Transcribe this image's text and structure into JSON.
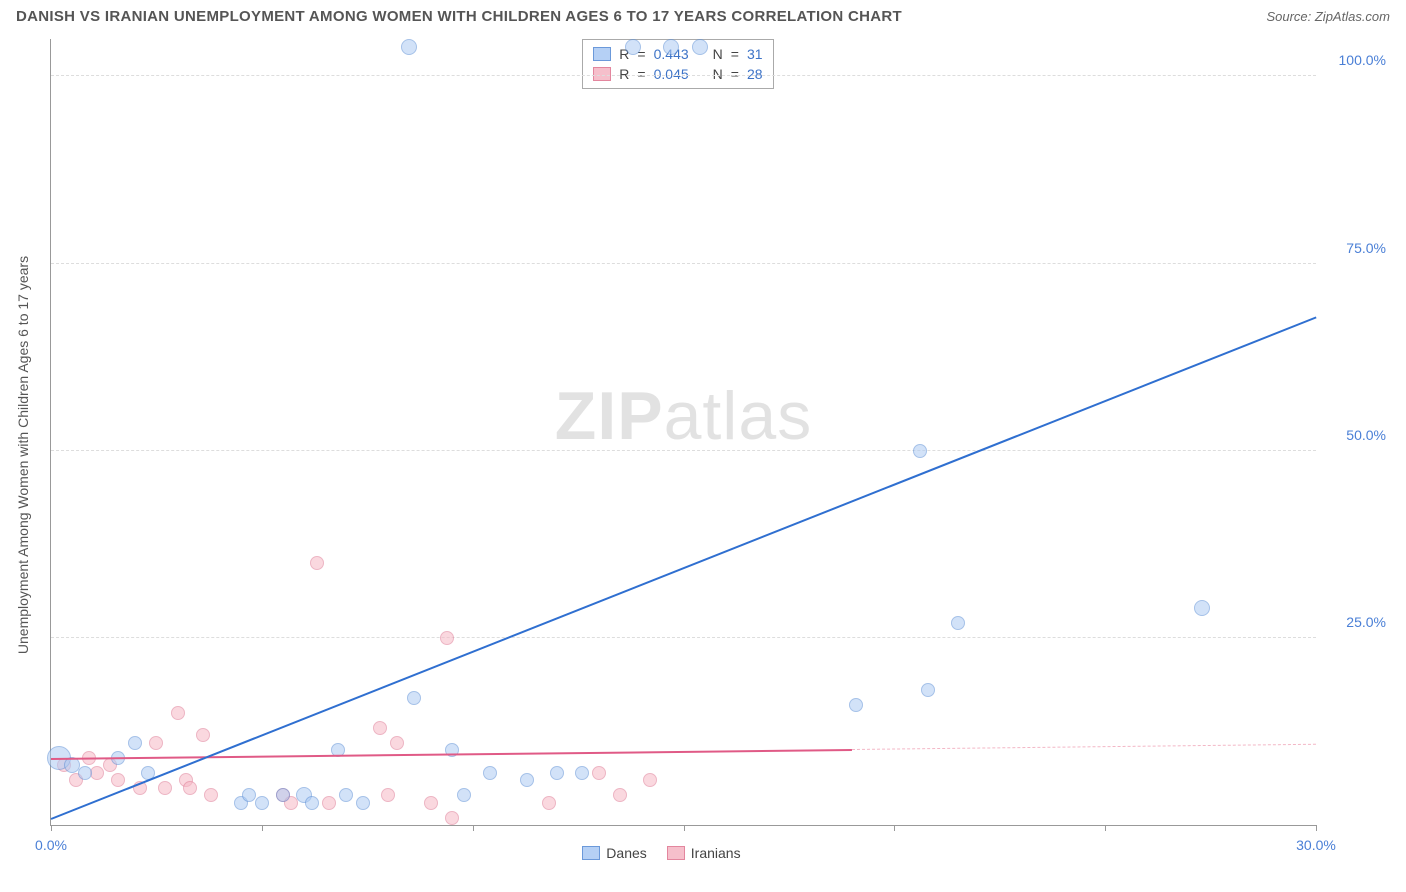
{
  "header": {
    "title": "DANISH VS IRANIAN UNEMPLOYMENT AMONG WOMEN WITH CHILDREN AGES 6 TO 17 YEARS CORRELATION CHART",
    "source_prefix": "Source: ",
    "source": "ZipAtlas.com"
  },
  "watermark": {
    "zip": "ZIP",
    "atlas": "atlas"
  },
  "axes": {
    "ylabel": "Unemployment Among Women with Children Ages 6 to 17 years",
    "xlim": [
      0,
      30
    ],
    "ylim": [
      0,
      105
    ],
    "yticks": [
      25,
      50,
      75,
      100
    ],
    "ytick_labels": [
      "25.0%",
      "50.0%",
      "75.0%",
      "100.0%"
    ],
    "ytick_color": "#4a7fd6",
    "xtick_positions": [
      0,
      5,
      10,
      15,
      20,
      25,
      30
    ],
    "xtick_visible_labels": {
      "0": "0.0%",
      "30": "30.0%"
    },
    "xtick_color": "#4a7fd6",
    "grid_color": "#dddddd",
    "axis_color": "#999999",
    "background_color": "#ffffff"
  },
  "series": {
    "danes": {
      "label": "Danes",
      "fill": "#aeccf4",
      "stroke": "#5c8fd6",
      "fill_opacity": 0.55,
      "stats": {
        "R_label": "R",
        "R": "0.443",
        "N_label": "N",
        "N": "31"
      },
      "stat_value_color": "#3d73c7",
      "trend": {
        "x1": 0,
        "y1": 1,
        "x2": 30,
        "y2": 68,
        "color": "#2f6fd0",
        "width": 2
      },
      "points": [
        {
          "x": 0.2,
          "y": 9,
          "r": 12
        },
        {
          "x": 0.5,
          "y": 8,
          "r": 8
        },
        {
          "x": 0.8,
          "y": 7,
          "r": 7
        },
        {
          "x": 1.6,
          "y": 9,
          "r": 7
        },
        {
          "x": 2.0,
          "y": 11,
          "r": 7
        },
        {
          "x": 2.3,
          "y": 7,
          "r": 7
        },
        {
          "x": 4.5,
          "y": 3,
          "r": 7
        },
        {
          "x": 4.7,
          "y": 4,
          "r": 7
        },
        {
          "x": 5.0,
          "y": 3,
          "r": 7
        },
        {
          "x": 5.5,
          "y": 4,
          "r": 7
        },
        {
          "x": 6.0,
          "y": 4,
          "r": 8
        },
        {
          "x": 6.2,
          "y": 3,
          "r": 7
        },
        {
          "x": 6.8,
          "y": 10,
          "r": 7
        },
        {
          "x": 7.0,
          "y": 4,
          "r": 7
        },
        {
          "x": 7.4,
          "y": 3,
          "r": 7
        },
        {
          "x": 8.6,
          "y": 17,
          "r": 7
        },
        {
          "x": 8.5,
          "y": 104,
          "r": 8
        },
        {
          "x": 9.5,
          "y": 10,
          "r": 7
        },
        {
          "x": 9.8,
          "y": 4,
          "r": 7
        },
        {
          "x": 10.4,
          "y": 7,
          "r": 7
        },
        {
          "x": 11.3,
          "y": 6,
          "r": 7
        },
        {
          "x": 12.0,
          "y": 7,
          "r": 7
        },
        {
          "x": 12.6,
          "y": 7,
          "r": 7
        },
        {
          "x": 13.8,
          "y": 104,
          "r": 8
        },
        {
          "x": 14.7,
          "y": 104,
          "r": 8
        },
        {
          "x": 15.4,
          "y": 104,
          "r": 8
        },
        {
          "x": 19.1,
          "y": 16,
          "r": 7
        },
        {
          "x": 20.6,
          "y": 50,
          "r": 7
        },
        {
          "x": 20.8,
          "y": 18,
          "r": 7
        },
        {
          "x": 21.5,
          "y": 27,
          "r": 7
        },
        {
          "x": 27.3,
          "y": 29,
          "r": 8
        }
      ]
    },
    "iranians": {
      "label": "Iranians",
      "fill": "#f6b9c6",
      "stroke": "#e07a94",
      "fill_opacity": 0.55,
      "stats": {
        "R_label": "R",
        "R": "0.045",
        "N_label": "N",
        "N": "28"
      },
      "stat_value_color": "#3d73c7",
      "trend_solid": {
        "x1": 0,
        "y1": 9,
        "x2": 19,
        "y2": 10.2,
        "color": "#e05a86",
        "width": 2
      },
      "trend_dashed": {
        "x1": 19,
        "y1": 10.2,
        "x2": 30,
        "y2": 10.9,
        "color": "#f3b7c6",
        "width": 1.5
      },
      "points": [
        {
          "x": 0.3,
          "y": 8,
          "r": 7
        },
        {
          "x": 0.6,
          "y": 6,
          "r": 7
        },
        {
          "x": 0.9,
          "y": 9,
          "r": 7
        },
        {
          "x": 1.1,
          "y": 7,
          "r": 7
        },
        {
          "x": 1.4,
          "y": 8,
          "r": 7
        },
        {
          "x": 1.6,
          "y": 6,
          "r": 7
        },
        {
          "x": 2.1,
          "y": 5,
          "r": 7
        },
        {
          "x": 2.5,
          "y": 11,
          "r": 7
        },
        {
          "x": 2.7,
          "y": 5,
          "r": 7
        },
        {
          "x": 3.0,
          "y": 15,
          "r": 7
        },
        {
          "x": 3.2,
          "y": 6,
          "r": 7
        },
        {
          "x": 3.3,
          "y": 5,
          "r": 7
        },
        {
          "x": 3.6,
          "y": 12,
          "r": 7
        },
        {
          "x": 3.8,
          "y": 4,
          "r": 7
        },
        {
          "x": 5.5,
          "y": 4,
          "r": 7
        },
        {
          "x": 5.7,
          "y": 3,
          "r": 7
        },
        {
          "x": 6.3,
          "y": 35,
          "r": 7
        },
        {
          "x": 6.6,
          "y": 3,
          "r": 7
        },
        {
          "x": 7.8,
          "y": 13,
          "r": 7
        },
        {
          "x": 8.0,
          "y": 4,
          "r": 7
        },
        {
          "x": 8.2,
          "y": 11,
          "r": 7
        },
        {
          "x": 9.0,
          "y": 3,
          "r": 7
        },
        {
          "x": 9.4,
          "y": 25,
          "r": 7
        },
        {
          "x": 9.5,
          "y": 1,
          "r": 7
        },
        {
          "x": 11.8,
          "y": 3,
          "r": 7
        },
        {
          "x": 13.0,
          "y": 7,
          "r": 7
        },
        {
          "x": 13.5,
          "y": 4,
          "r": 7
        },
        {
          "x": 14.2,
          "y": 6,
          "r": 7
        }
      ]
    }
  },
  "legend_eq": "="
}
